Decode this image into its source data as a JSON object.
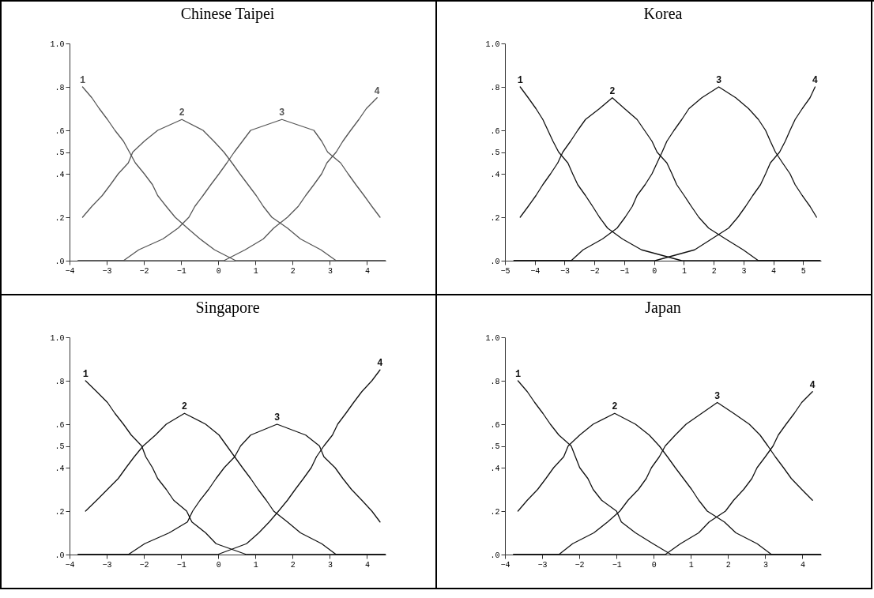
{
  "chart_data": [
    {
      "type": "line",
      "title": "Chinese Taipei",
      "legend": false,
      "xlim": [
        -4,
        4.5
      ],
      "xticks": [
        -4,
        -3,
        -2,
        -1,
        0,
        1,
        2,
        3,
        4
      ],
      "ylim": [
        0,
        1
      ],
      "yticks": [
        {
          "value": 0,
          "label": ".0"
        },
        {
          "value": 0.2,
          "label": ".2"
        },
        {
          "value": 0.4,
          "label": ".4"
        },
        {
          "value": 0.5,
          "label": ".5"
        },
        {
          "value": 0.6,
          "label": ".6"
        },
        {
          "value": 0.8,
          "label": ".8"
        },
        {
          "value": 1,
          "label": "1.0"
        }
      ],
      "grid": false,
      "marker": "none",
      "line_style": "solid",
      "series": [
        {
          "name": "1",
          "color": "#555555",
          "x": [
            -3.65,
            -3.4,
            -3.2,
            -2.98,
            -2.78,
            -2.55,
            -2.23,
            -1.99,
            -1.77,
            -1.63,
            -1.4,
            -1.16,
            -0.83,
            -0.49,
            -0.1,
            0.47,
            4.49
          ],
          "values": [
            0.8,
            0.75,
            0.7,
            0.65,
            0.6,
            0.55,
            0.45,
            0.4,
            0.35,
            0.3,
            0.25,
            0.2,
            0.15,
            0.1,
            0.05,
            0,
            0
          ]
        },
        {
          "name": "2",
          "color": "#555555",
          "x": [
            -3.65,
            -3.4,
            -3.12,
            -2.9,
            -2.69,
            -2.42,
            -2.3,
            -1.99,
            -1.63,
            -0.98,
            -0.41,
            -0.12,
            0.15,
            0.37,
            0.58,
            0.8,
            1.02,
            1.21,
            1.44,
            1.86,
            2.21,
            2.76,
            3.17,
            4.49
          ],
          "values": [
            0.2,
            0.25,
            0.3,
            0.35,
            0.4,
            0.45,
            0.5,
            0.55,
            0.6,
            0.65,
            0.6,
            0.55,
            0.5,
            0.45,
            0.4,
            0.35,
            0.3,
            0.25,
            0.2,
            0.15,
            0.1,
            0.05,
            0,
            0
          ]
        },
        {
          "name": "3",
          "color": "#555555",
          "x": [
            -3.77,
            -2.55,
            -2.14,
            -1.49,
            -1.08,
            -0.79,
            -0.63,
            -0.41,
            -0.2,
            0.02,
            0.23,
            0.43,
            0.65,
            0.87,
            1.71,
            2.57,
            2.78,
            2.94,
            3.29,
            3.49,
            3.7,
            3.92,
            4.13,
            4.35
          ],
          "values": [
            0,
            0,
            0.05,
            0.1,
            0.15,
            0.2,
            0.25,
            0.3,
            0.35,
            0.4,
            0.45,
            0.5,
            0.55,
            0.6,
            0.65,
            0.6,
            0.55,
            0.5,
            0.45,
            0.4,
            0.35,
            0.3,
            0.25,
            0.2
          ]
        },
        {
          "name": "4",
          "color": "#555555",
          "x": [
            -3.77,
            0.15,
            0.72,
            1.21,
            1.49,
            1.86,
            2.15,
            2.35,
            2.57,
            2.78,
            2.92,
            3.17,
            3.35,
            3.56,
            3.78,
            3.98,
            4.27
          ],
          "values": [
            0,
            0,
            0.05,
            0.1,
            0.15,
            0.2,
            0.25,
            0.3,
            0.35,
            0.4,
            0.45,
            0.5,
            0.55,
            0.6,
            0.65,
            0.7,
            0.75
          ]
        }
      ]
    },
    {
      "type": "line",
      "title": "Korea",
      "legend": false,
      "xlim": [
        -5,
        5.6
      ],
      "xticks": [
        -5,
        -4,
        -3,
        -2,
        -1,
        0,
        1,
        2,
        3,
        4,
        5
      ],
      "ylim": [
        0,
        1
      ],
      "yticks": [
        {
          "value": 0,
          "label": ".0"
        },
        {
          "value": 0.2,
          "label": ".2"
        },
        {
          "value": 0.4,
          "label": ".4"
        },
        {
          "value": 0.5,
          "label": ".5"
        },
        {
          "value": 0.6,
          "label": ".6"
        },
        {
          "value": 0.8,
          "label": ".8"
        },
        {
          "value": 1,
          "label": "1.0"
        }
      ],
      "grid": false,
      "marker": "none",
      "line_style": "solid",
      "series": [
        {
          "name": "1",
          "color": "#111111",
          "x": [
            -4.49,
            -4.22,
            -3.96,
            -3.73,
            -3.56,
            -3.39,
            -3.2,
            -2.89,
            -2.73,
            -2.56,
            -2.3,
            -2.06,
            -1.83,
            -1.56,
            -1.06,
            -0.42,
            0.93,
            5.57
          ],
          "values": [
            0.8,
            0.75,
            0.7,
            0.65,
            0.6,
            0.55,
            0.5,
            0.45,
            0.4,
            0.35,
            0.3,
            0.25,
            0.2,
            0.15,
            0.1,
            0.05,
            0,
            0
          ]
        },
        {
          "name": "2",
          "color": "#111111",
          "x": [
            -4.49,
            -4.22,
            -3.96,
            -3.73,
            -3.47,
            -3.23,
            -3.06,
            -2.8,
            -2.56,
            -2.3,
            -1.83,
            -1.4,
            -0.99,
            -0.57,
            -0.32,
            -0.07,
            0.1,
            0.43,
            0.6,
            0.76,
            1.01,
            1.25,
            1.5,
            1.83,
            2.4,
            2.99,
            3.5,
            5.57
          ],
          "values": [
            0.2,
            0.25,
            0.3,
            0.35,
            0.4,
            0.45,
            0.5,
            0.55,
            0.6,
            0.65,
            0.7,
            0.75,
            0.7,
            0.65,
            0.6,
            0.55,
            0.5,
            0.45,
            0.4,
            0.35,
            0.3,
            0.25,
            0.2,
            0.15,
            0.1,
            0.05,
            0,
            0
          ]
        },
        {
          "name": "3",
          "color": "#111111",
          "x": [
            -4.7,
            -2.78,
            -2.38,
            -1.73,
            -1.24,
            -0.97,
            -0.73,
            -0.57,
            -0.3,
            -0.07,
            0.1,
            0.27,
            0.43,
            0.67,
            0.93,
            1.17,
            1.6,
            2.17,
            2.74,
            3.17,
            3.5,
            3.74,
            3.9,
            4.07,
            4.31,
            4.56,
            4.73,
            4.97,
            5.23,
            5.45
          ],
          "values": [
            0,
            0,
            0.05,
            0.1,
            0.15,
            0.2,
            0.25,
            0.3,
            0.35,
            0.4,
            0.45,
            0.5,
            0.55,
            0.6,
            0.65,
            0.7,
            0.75,
            0.8,
            0.75,
            0.7,
            0.65,
            0.6,
            0.55,
            0.5,
            0.45,
            0.4,
            0.35,
            0.3,
            0.25,
            0.2
          ]
        },
        {
          "name": "4",
          "color": "#111111",
          "x": [
            -4.7,
            0.03,
            1.36,
            1.93,
            2.5,
            2.81,
            3.07,
            3.31,
            3.57,
            3.74,
            3.9,
            4.21,
            4.4,
            4.56,
            4.73,
            4.97,
            5.23,
            5.4
          ],
          "values": [
            0,
            0,
            0.05,
            0.1,
            0.15,
            0.2,
            0.25,
            0.3,
            0.35,
            0.4,
            0.45,
            0.5,
            0.55,
            0.6,
            0.65,
            0.7,
            0.75,
            0.8
          ]
        }
      ]
    },
    {
      "type": "line",
      "title": "Singapore",
      "legend": false,
      "xlim": [
        -4,
        4.5
      ],
      "xticks": [
        -4,
        -3,
        -2,
        -1,
        0,
        1,
        2,
        3,
        4
      ],
      "ylim": [
        0,
        1
      ],
      "yticks": [
        {
          "value": 0,
          "label": ".0"
        },
        {
          "value": 0.2,
          "label": ".2"
        },
        {
          "value": 0.4,
          "label": ".4"
        },
        {
          "value": 0.5,
          "label": ".5"
        },
        {
          "value": 0.6,
          "label": ".6"
        },
        {
          "value": 0.8,
          "label": ".8"
        },
        {
          "value": 1,
          "label": "1.0"
        }
      ],
      "grid": false,
      "marker": "none",
      "line_style": "solid",
      "series": [
        {
          "name": "1",
          "color": "#111111",
          "x": [
            -3.57,
            -3.27,
            -2.98,
            -2.78,
            -2.55,
            -2.34,
            -2.06,
            -1.95,
            -1.77,
            -1.63,
            -1.4,
            -1.2,
            -0.85,
            -0.71,
            -0.34,
            -0.06,
            0.76,
            4.49
          ],
          "values": [
            0.8,
            0.75,
            0.7,
            0.65,
            0.6,
            0.55,
            0.5,
            0.45,
            0.4,
            0.35,
            0.3,
            0.25,
            0.2,
            0.15,
            0.1,
            0.05,
            0,
            0
          ]
        },
        {
          "name": "2",
          "color": "#111111",
          "x": [
            -3.57,
            -3.27,
            -2.98,
            -2.69,
            -2.48,
            -2.26,
            -2.02,
            -1.69,
            -1.4,
            -0.91,
            -0.34,
            0.02,
            0.23,
            0.44,
            0.65,
            0.87,
            1.07,
            1.29,
            1.49,
            1.86,
            2.21,
            2.78,
            3.17,
            4.49
          ],
          "values": [
            0.2,
            0.25,
            0.3,
            0.35,
            0.4,
            0.45,
            0.5,
            0.55,
            0.6,
            0.65,
            0.6,
            0.55,
            0.5,
            0.45,
            0.4,
            0.35,
            0.3,
            0.25,
            0.2,
            0.15,
            0.1,
            0.05,
            0,
            0
          ]
        },
        {
          "name": "3",
          "color": "#111111",
          "x": [
            -3.77,
            -2.42,
            -1.98,
            -1.32,
            -0.83,
            -0.69,
            -0.49,
            -0.26,
            -0.06,
            0.16,
            0.44,
            0.6,
            0.87,
            1.58,
            2.35,
            2.72,
            2.84,
            3.14,
            3.35,
            3.58,
            3.86,
            4.13,
            4.35
          ],
          "values": [
            0,
            0,
            0.05,
            0.1,
            0.15,
            0.2,
            0.25,
            0.3,
            0.35,
            0.4,
            0.45,
            0.5,
            0.55,
            0.6,
            0.55,
            0.5,
            0.45,
            0.4,
            0.35,
            0.3,
            0.25,
            0.2,
            0.15
          ]
        },
        {
          "name": "4",
          "color": "#111111",
          "x": [
            -3.77,
            -0.02,
            0.76,
            1.09,
            1.37,
            1.62,
            1.86,
            2.07,
            2.29,
            2.5,
            2.64,
            2.84,
            3.07,
            3.21,
            3.43,
            3.64,
            3.86,
            4.13,
            4.35
          ],
          "values": [
            0,
            0,
            0.05,
            0.1,
            0.15,
            0.2,
            0.25,
            0.3,
            0.35,
            0.4,
            0.45,
            0.5,
            0.55,
            0.6,
            0.65,
            0.7,
            0.75,
            0.8,
            0.85
          ]
        }
      ]
    },
    {
      "type": "line",
      "title": "Japan",
      "legend": false,
      "xlim": [
        -4,
        4.5
      ],
      "xticks": [
        -4,
        -3,
        -2,
        -1,
        0,
        1,
        2,
        3,
        4
      ],
      "ylim": [
        0,
        1
      ],
      "yticks": [
        {
          "value": 0,
          "label": ".0"
        },
        {
          "value": 0.2,
          "label": ".2"
        },
        {
          "value": 0.4,
          "label": ".4"
        },
        {
          "value": 0.5,
          "label": ".5"
        },
        {
          "value": 0.6,
          "label": ".6"
        },
        {
          "value": 0.8,
          "label": ".8"
        },
        {
          "value": 1,
          "label": "1.0"
        }
      ],
      "grid": false,
      "marker": "none",
      "line_style": "solid",
      "series": [
        {
          "name": "1",
          "color": "#111111",
          "x": [
            -3.65,
            -3.4,
            -3.2,
            -2.98,
            -2.78,
            -2.55,
            -2.22,
            -1.99,
            -1.77,
            -1.63,
            -1.4,
            -1.0,
            -0.87,
            -0.49,
            -0.02,
            0.47,
            4.49
          ],
          "values": [
            0.8,
            0.75,
            0.7,
            0.65,
            0.6,
            0.55,
            0.5,
            0.4,
            0.35,
            0.3,
            0.25,
            0.2,
            0.15,
            0.1,
            0.05,
            0,
            0
          ]
        },
        {
          "name": "2",
          "color": "#111111",
          "x": [
            -3.65,
            -3.4,
            -3.12,
            -2.9,
            -2.69,
            -2.42,
            -2.3,
            -1.99,
            -1.63,
            -1.05,
            -0.49,
            -0.12,
            0.15,
            0.37,
            0.58,
            0.8,
            1.02,
            1.21,
            1.44,
            1.9,
            2.21,
            2.78,
            3.17,
            4.49
          ],
          "values": [
            0.2,
            0.25,
            0.3,
            0.35,
            0.4,
            0.45,
            0.5,
            0.55,
            0.6,
            0.65,
            0.6,
            0.55,
            0.5,
            0.45,
            0.4,
            0.35,
            0.3,
            0.25,
            0.2,
            0.15,
            0.1,
            0.05,
            0,
            0
          ]
        },
        {
          "name": "3",
          "color": "#111111",
          "x": [
            -3.77,
            -2.55,
            -2.18,
            -1.61,
            -1.24,
            -0.91,
            -0.69,
            -0.41,
            -0.2,
            -0.06,
            0.15,
            0.31,
            0.58,
            0.87,
            1.29,
            1.71,
            2.15,
            2.57,
            2.86,
            3.07,
            3.27,
            3.49,
            3.7,
            3.98,
            4.27
          ],
          "values": [
            0,
            0,
            0.05,
            0.1,
            0.15,
            0.2,
            0.25,
            0.3,
            0.35,
            0.4,
            0.45,
            0.5,
            0.55,
            0.6,
            0.65,
            0.7,
            0.65,
            0.6,
            0.55,
            0.5,
            0.45,
            0.4,
            0.35,
            0.3,
            0.25
          ]
        },
        {
          "name": "4",
          "color": "#111111",
          "x": [
            -3.77,
            0.31,
            0.72,
            1.21,
            1.49,
            1.93,
            2.15,
            2.42,
            2.64,
            2.78,
            3.0,
            3.21,
            3.35,
            3.56,
            3.78,
            3.98,
            4.27
          ],
          "values": [
            0,
            0,
            0.05,
            0.1,
            0.15,
            0.2,
            0.25,
            0.3,
            0.35,
            0.4,
            0.45,
            0.5,
            0.55,
            0.6,
            0.65,
            0.7,
            0.75
          ]
        }
      ]
    }
  ]
}
